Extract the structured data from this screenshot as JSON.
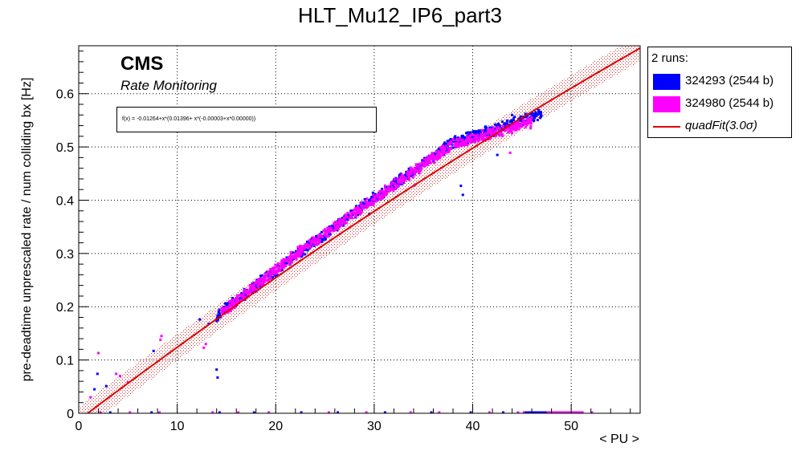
{
  "chart_data": {
    "type": "scatter",
    "title": "HLT_Mu12_IP6_part3",
    "xlabel": "< PU >",
    "ylabel": "pre-deadtime unprescaled rate / num colliding bx [Hz]",
    "xlim": [
      0,
      57
    ],
    "ylim": [
      0,
      0.69
    ],
    "xticks": [
      0,
      10,
      20,
      30,
      40,
      50
    ],
    "yticks": [
      0,
      0.1,
      0.2,
      0.3,
      0.4,
      0.5,
      0.6
    ],
    "grid": true,
    "legend_placement": "outside-right",
    "legend_header": "2 runs:",
    "cms_label": "CMS",
    "subtitle": "Rate Monitoring",
    "fit_text": "f(x) = -0.01264+x*(0.01396+ x*(-0.00003+x*0.00000))",
    "fit": {
      "name": "quadFit(3.0σ)",
      "coefficients": [
        -0.01264,
        0.01396,
        -3e-05,
        0.0
      ],
      "sigma_band": 0.025,
      "color": "#dd0000"
    },
    "series": [
      {
        "name": "324293 (2544 b)",
        "color": "#0000ff",
        "main_band": [
          [
            14,
            0.184
          ],
          [
            22,
            0.296
          ],
          [
            30,
            0.404
          ],
          [
            38,
            0.508
          ],
          [
            47,
            0.562
          ]
        ],
        "outliers": [
          [
            1.9,
            0.074
          ],
          [
            1.6,
            0.045
          ],
          [
            2.8,
            0.051
          ],
          [
            7.6,
            0.117
          ],
          [
            14.0,
            0.082
          ],
          [
            14.1,
            0.067
          ],
          [
            38.8,
            0.427
          ],
          [
            42.5,
            0.485
          ],
          [
            44.0,
            0.56
          ],
          [
            12.3,
            0.176
          ],
          [
            13.2,
            0.168
          ],
          [
            29.5,
            0.374
          ],
          [
            39.0,
            0.41
          ]
        ],
        "zeros": [
          3.2,
          7.4,
          14.3,
          17.8,
          22.6,
          26.3,
          31.1,
          35.8,
          39.8,
          43.1,
          45.5,
          47.2
        ]
      },
      {
        "name": "324980 (2544 b)",
        "color": "#ff00ff",
        "main_band": [
          [
            14.5,
            0.189
          ],
          [
            22,
            0.298
          ],
          [
            30,
            0.402
          ],
          [
            38,
            0.506
          ],
          [
            46,
            0.546
          ]
        ],
        "outliers": [
          [
            2.0,
            0.113
          ],
          [
            1.2,
            0.03
          ],
          [
            3.8,
            0.074
          ],
          [
            4.2,
            0.07
          ],
          [
            8.4,
            0.145
          ],
          [
            8.3,
            0.138
          ],
          [
            12.9,
            0.13
          ],
          [
            12.7,
            0.123
          ],
          [
            43.8,
            0.489
          ],
          [
            34.1,
            0.428
          ],
          [
            38.8,
            0.505
          ],
          [
            5.0,
            0.058
          ]
        ],
        "zeros": [
          2.2,
          5.2,
          8.2,
          13.6,
          16.2,
          19.3,
          25.4,
          29.2,
          33.7,
          36.6,
          41.7,
          44.6,
          48.0,
          50.5,
          52.1
        ]
      }
    ]
  }
}
